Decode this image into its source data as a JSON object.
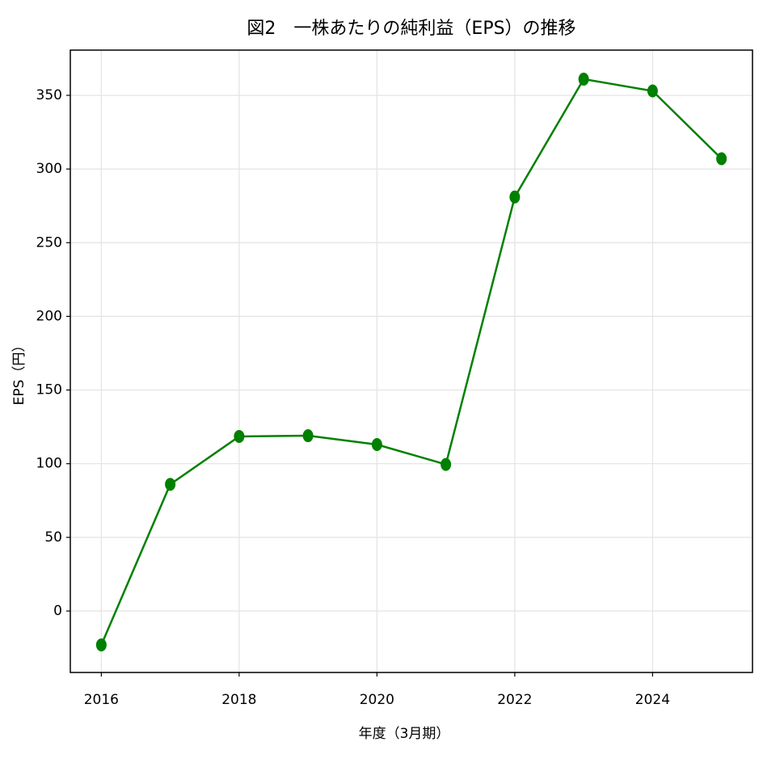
{
  "chart_data": {
    "type": "line",
    "title": "図2　一株あたりの純利益（EPS）の推移",
    "x_label": "年度（3月期）",
    "y_label": "EPS（円）",
    "x": [
      2016,
      2017,
      2018,
      2019,
      2020,
      2021,
      2022,
      2023,
      2024,
      2025
    ],
    "series": [
      {
        "name": "EPS",
        "color": "#008000",
        "values": [
          -23,
          86,
          118.5,
          119,
          113,
          99.5,
          281,
          361,
          353,
          307
        ]
      }
    ],
    "xlim": [
      2015.55,
      2025.45
    ],
    "xticks": [
      2016,
      2018,
      2020,
      2022,
      2024
    ],
    "ylim": [
      -41.7,
      380.7
    ],
    "yticks": [
      0,
      50,
      100,
      150,
      200,
      250,
      300,
      350
    ],
    "grid": true
  }
}
